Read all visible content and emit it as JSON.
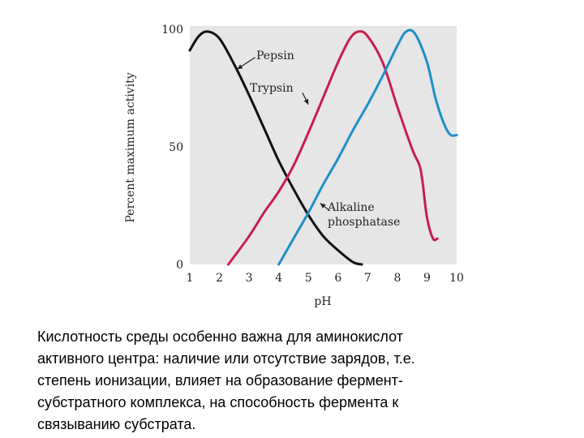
{
  "chart_data": {
    "type": "line",
    "title": "",
    "xlabel": "pH",
    "ylabel": "Percent maximum activity",
    "xlim": [
      1,
      10
    ],
    "ylim": [
      0,
      100
    ],
    "x_ticks": [
      "1",
      "2",
      "3",
      "4",
      "5",
      "6",
      "7",
      "8",
      "9",
      "10"
    ],
    "y_ticks": [
      "0",
      "50",
      "100"
    ],
    "grid": false,
    "series": [
      {
        "name": "Pepsin",
        "color": "#111111",
        "points": [
          [
            1.0,
            91
          ],
          [
            1.3,
            97
          ],
          [
            1.6,
            99
          ],
          [
            2.0,
            96
          ],
          [
            2.5,
            85
          ],
          [
            3.0,
            72
          ],
          [
            3.5,
            58
          ],
          [
            4.0,
            44
          ],
          [
            4.5,
            32
          ],
          [
            5.0,
            21
          ],
          [
            5.5,
            12
          ],
          [
            6.0,
            6
          ],
          [
            6.5,
            1
          ],
          [
            6.8,
            0
          ]
        ]
      },
      {
        "name": "Trypsin",
        "color": "#c81e4e",
        "points": [
          [
            2.3,
            0
          ],
          [
            3.0,
            12
          ],
          [
            3.5,
            22
          ],
          [
            4.0,
            31
          ],
          [
            4.5,
            42
          ],
          [
            5.0,
            56
          ],
          [
            5.5,
            71
          ],
          [
            6.0,
            86
          ],
          [
            6.4,
            96
          ],
          [
            6.7,
            99
          ],
          [
            7.0,
            97
          ],
          [
            7.5,
            86
          ],
          [
            8.0,
            67
          ],
          [
            8.5,
            49
          ],
          [
            8.75,
            42
          ],
          [
            8.85,
            35
          ],
          [
            9.0,
            20
          ],
          [
            9.2,
            11
          ],
          [
            9.35,
            11
          ]
        ]
      },
      {
        "name": "Alkaline phosphatase",
        "color": "#1f8fc8",
        "points": [
          [
            4.0,
            0
          ],
          [
            4.5,
            11
          ],
          [
            5.0,
            22
          ],
          [
            5.5,
            34
          ],
          [
            6.0,
            45
          ],
          [
            6.5,
            57
          ],
          [
            7.0,
            68
          ],
          [
            7.5,
            80
          ],
          [
            8.0,
            93
          ],
          [
            8.3,
            99
          ],
          [
            8.6,
            98
          ],
          [
            9.0,
            86
          ],
          [
            9.3,
            70
          ],
          [
            9.6,
            59
          ],
          [
            9.8,
            55
          ],
          [
            10.0,
            55
          ]
        ]
      }
    ],
    "annotations": [
      {
        "text": "Pepsin",
        "lines": [
          "Pepsin"
        ],
        "arrow_tail": [
          3.2,
          88
        ],
        "arrow_head": [
          2.6,
          83
        ]
      },
      {
        "text": "Trypsin",
        "lines": [
          "Trypsin"
        ],
        "arrow_tail": [
          4.8,
          73
        ],
        "arrow_head": [
          5.0,
          68
        ]
      },
      {
        "text": "Alkaline phosphatase",
        "lines": [
          "Alkaline",
          "phosphatase"
        ],
        "arrow_tail": [
          5.7,
          23
        ],
        "arrow_head": [
          5.4,
          26
        ]
      }
    ]
  },
  "caption": {
    "lines": [
      "Кислотность среды особенно важна для аминокислот",
      "активного центра: наличие или отсутствие зарядов, т.е.",
      "степень ионизации,  влияет на образование фермент-",
      "субстратного комплекса, на способность фермента к",
      "связыванию субстрата."
    ]
  }
}
